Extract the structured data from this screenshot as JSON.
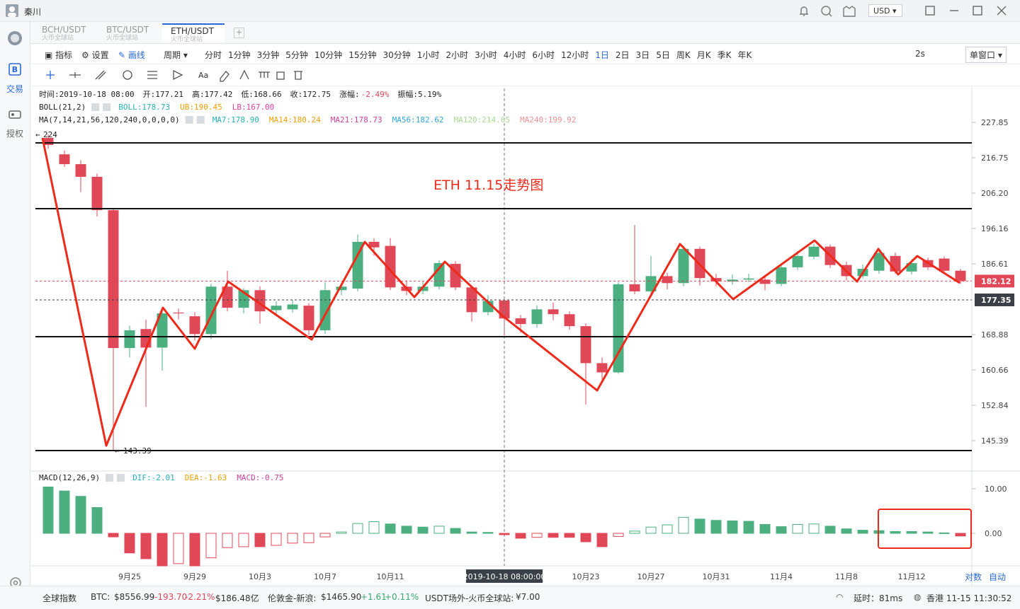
{
  "app": {
    "user": "秦川",
    "currency": "USD"
  },
  "tabs": [
    {
      "pair": "BCH/USDT",
      "exchange": "火币全球站"
    },
    {
      "pair": "BTC/USDT",
      "exchange": "火币全球站"
    },
    {
      "pair": "ETH/USDT",
      "exchange": "火币全球站"
    }
  ],
  "sidebar": [
    "交易",
    "授权"
  ],
  "toolbar": {
    "indicator": "指标",
    "settings": "设置",
    "draw": "画线",
    "period": "周期",
    "periods": [
      "分时",
      "1分钟",
      "3分钟",
      "5分钟",
      "10分钟",
      "15分钟",
      "30分钟",
      "1小时",
      "2小时",
      "3小时",
      "4小时",
      "6小时",
      "12小时",
      "1日",
      "2日",
      "3日",
      "5日",
      "周K",
      "月K",
      "季K",
      "年K"
    ],
    "active_period": "1日",
    "refresh": "2s",
    "window": "单窗口",
    "text_tool": "Aa"
  },
  "chart_data": {
    "type": "candlestick",
    "title": "ETH 11.15走势图",
    "info": [
      "时间:2019-10-18 08:00",
      "开:177.21",
      "高:177.42",
      "低:168.66",
      "收:172.75",
      "涨幅:",
      "-2.49%",
      "振幅:5.19%"
    ],
    "boll": {
      "label": "BOLL(21,2)",
      "items": [
        {
          "text": "BOLL:178.73",
          "color": "#27b0b8"
        },
        {
          "text": "UB:190.45",
          "color": "#f0a000"
        },
        {
          "text": "LB:167.00",
          "color": "#e040a0"
        }
      ]
    },
    "ma": {
      "label": "MA(7,14,21,56,120,240,0,0,0,0)",
      "items": [
        {
          "text": "MA7:178.90",
          "color": "#27b0b8"
        },
        {
          "text": "MA14:180.24",
          "color": "#f0a000"
        },
        {
          "text": "MA21:178.73",
          "color": "#d040a0"
        },
        {
          "text": "MA56:182.62",
          "color": "#30a8d8"
        },
        {
          "text": "MA120:214.65",
          "color": "#a8d890"
        },
        {
          "text": "MA240:199.92",
          "color": "#f09090"
        }
      ]
    },
    "categories": [
      null,
      null,
      null,
      null,
      null,
      "9月25",
      null,
      null,
      null,
      "9月29",
      null,
      null,
      null,
      "10月3",
      null,
      null,
      null,
      "10月7",
      null,
      null,
      null,
      "10月11",
      null,
      null,
      null,
      null,
      null,
      null,
      null,
      null,
      null,
      null,
      null,
      "10月23",
      null,
      null,
      null,
      "10月27",
      null,
      null,
      null,
      "10月31",
      null,
      null,
      null,
      "11月4",
      null,
      null,
      null,
      "11月8",
      null,
      null,
      null,
      "11月12",
      null,
      null,
      null
    ],
    "open": [
      222.9,
      217.8,
      214.8,
      211.0,
      201.3,
      165.7,
      170.2,
      165.8,
      174.2,
      173.3,
      169.0,
      180.7,
      175.4,
      179.8,
      174.8,
      175.0,
      175.9,
      169.9,
      179.8,
      180.2,
      192.5,
      191.4,
      180.7,
      179.6,
      180.7,
      186.6,
      180.5,
      174.3,
      177.21,
      172.8,
      171.4,
      175.0,
      173.8,
      170.9,
      162.2,
      160.1,
      181.3,
      179.5,
      183.4,
      181.6,
      190.6,
      182.9,
      182.0,
      182.5,
      182.5,
      181.4,
      185.7,
      188.5,
      191.2,
      186.3,
      183.4,
      184.8,
      188.7,
      184.6,
      187.6,
      188.0,
      184.8
    ],
    "high": [
      224,
      219.0,
      216.0,
      212.0,
      202.0,
      171.0,
      172.5,
      175.5,
      175.2,
      174.3,
      181.5,
      184.8,
      180.3,
      180.8,
      177.0,
      177.3,
      176.5,
      181.8,
      181.5,
      194.5,
      193.5,
      193.5,
      182.3,
      182.0,
      187.5,
      187.3,
      181.0,
      178.5,
      177.42,
      173.6,
      176.0,
      176.7,
      174.5,
      171.6,
      163.5,
      181.8,
      197.1,
      188.7,
      184.3,
      191.5,
      191.2,
      184.0,
      183.8,
      184.0,
      183.5,
      186.5,
      190.0,
      192.0,
      191.8,
      187.2,
      186.4,
      190.8,
      189.6,
      187.8,
      188.2,
      188.6,
      185.3
    ],
    "low": [
      219.5,
      214.0,
      206.5,
      199.5,
      143.39,
      163.5,
      152.5,
      160.5,
      172.5,
      167.5,
      167.8,
      174.5,
      174.0,
      171.5,
      173.5,
      174.2,
      168.8,
      169.0,
      178.5,
      179.5,
      188.8,
      179.8,
      178.5,
      178.8,
      180.0,
      179.8,
      172.0,
      173.5,
      168.66,
      169.3,
      170.5,
      172.3,
      170.0,
      153.0,
      158.5,
      159.8,
      178.8,
      178.6,
      180.0,
      180.8,
      181.0,
      180.8,
      181.2,
      181.8,
      179.8,
      180.8,
      185.0,
      187.8,
      185.5,
      182.3,
      182.8,
      184.0,
      184.0,
      183.8,
      185.0,
      184.0,
      181.4
    ],
    "close": [
      220.7,
      214.8,
      211.0,
      201.3,
      165.7,
      169.9,
      165.8,
      174.0,
      174.0,
      169.0,
      180.7,
      175.4,
      179.8,
      174.5,
      175.9,
      176.2,
      169.9,
      179.8,
      180.7,
      192.5,
      191.0,
      180.5,
      179.6,
      180.7,
      186.8,
      180.5,
      174.3,
      177.1,
      172.75,
      171.4,
      175.0,
      173.8,
      170.9,
      162.2,
      160.1,
      181.3,
      179.5,
      183.4,
      181.6,
      190.6,
      182.9,
      182.0,
      182.5,
      182.8,
      181.4,
      185.7,
      188.7,
      191.2,
      186.3,
      183.4,
      185.3,
      189.5,
      184.6,
      186.8,
      185.7,
      184.8,
      182.12
    ],
    "up_color": "#4caf80",
    "down_color": "#e04858",
    "log": true,
    "ylim": [
      139.42,
      239.04
    ],
    "yticks": [
      {
        "value": 227.85,
        "label": "227.85"
      },
      {
        "value": 216.75,
        "label": "216.75"
      },
      {
        "value": 206.2,
        "label": "206.20"
      },
      {
        "value": 196.16,
        "label": "196.16"
      },
      {
        "value": 186.61,
        "label": "186.61"
      },
      {
        "value": 168.88,
        "label": "168.88"
      },
      {
        "value": 160.66,
        "label": "160.66"
      },
      {
        "value": 152.84,
        "label": "152.84"
      },
      {
        "value": 145.39,
        "label": "145.39"
      }
    ],
    "high_label": "224",
    "low_label": "143.39",
    "price_lines": [
      {
        "value": 182.12,
        "label": "182.12",
        "color": "#e04858"
      },
      {
        "value": 177.35,
        "label": "177.35",
        "color": "#3a3f48"
      }
    ],
    "crosshair_label": "2019-10-18 08:00:00",
    "axis_buttons": [
      "对数",
      "自动"
    ],
    "macd": {
      "label": "MACD(12,26,9)",
      "items": [
        {
          "text": "DIF:-2.01",
          "color": "#27b0b8"
        },
        {
          "text": "DEA:-1.63",
          "color": "#f0a000"
        },
        {
          "text": "MACD:-0.75",
          "color": "#d040a0"
        }
      ],
      "values": [
        10.4,
        9.5,
        8.3,
        5.8,
        -0.8,
        -4.4,
        -5.7,
        -7.3,
        -6.8,
        -7.3,
        -5.5,
        -3.2,
        -3.0,
        -3.0,
        -2.7,
        -2.2,
        -2.1,
        -0.8,
        0.3,
        2.2,
        2.6,
        2.1,
        1.6,
        1.4,
        1.6,
        1.1,
        0.3,
        0.2,
        -0.3,
        -1.1,
        -0.9,
        -0.9,
        -0.9,
        -1.9,
        -3.0,
        -0.7,
        0.5,
        1.4,
        1.9,
        3.6,
        3.2,
        2.9,
        2.8,
        2.7,
        2.0,
        1.5,
        2.0,
        2.1,
        1.6,
        1.0,
        0.7,
        0.6,
        0.4,
        0.4,
        0.3,
        0.1,
        -0.6
      ],
      "ylim": [
        -7.3,
        13.81
      ],
      "yticks": [
        {
          "value": 10,
          "label": "10.00"
        },
        {
          "value": 0,
          "label": "0.00"
        }
      ]
    }
  },
  "status_bar": {
    "index": "全球指数",
    "btc": {
      "label": "BTC:",
      "price": "$8556.99",
      "change": "-193.70",
      "pct": "-2.21%",
      "volume": "$186.48亿"
    },
    "gold": {
      "label": "伦敦金-新浪:",
      "price": "$1465.90",
      "change": "+1.61",
      "pct": "+0.11%"
    },
    "otc": {
      "label": "USDT场外-火币全球站:",
      "price": "¥7.00"
    },
    "latency": "延时：81ms",
    "clock": "香港 11-15 11:30:52"
  }
}
